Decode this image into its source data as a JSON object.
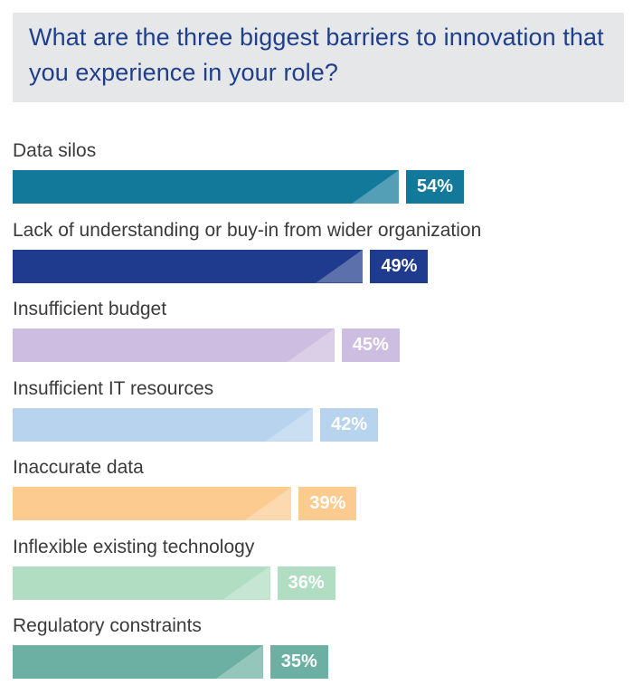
{
  "header": {
    "title": "What are the three biggest barriers to innovation that you experience in your role?"
  },
  "chart_data": {
    "type": "bar",
    "orientation": "horizontal",
    "title": "What are the three biggest barriers to innovation that you experience in your role?",
    "xlim": [
      0,
      100
    ],
    "grid": false,
    "categories": [
      "Data silos",
      "Lack of understanding or buy-in from wider organization",
      "Insufficient budget",
      "Insufficient IT resources",
      "Inaccurate data",
      "Inflexible existing technology",
      "Regulatory constraints"
    ],
    "values": [
      54,
      49,
      45,
      42,
      39,
      36,
      35
    ],
    "value_labels": [
      "54%",
      "49%",
      "45%",
      "42%",
      "39%",
      "36%",
      "35%"
    ],
    "colors": [
      "#13799a",
      "#1e3b8d",
      "#cdbde0",
      "#b8d3ee",
      "#fbcb8f",
      "#b1ddc2",
      "#6bb0a3"
    ]
  }
}
